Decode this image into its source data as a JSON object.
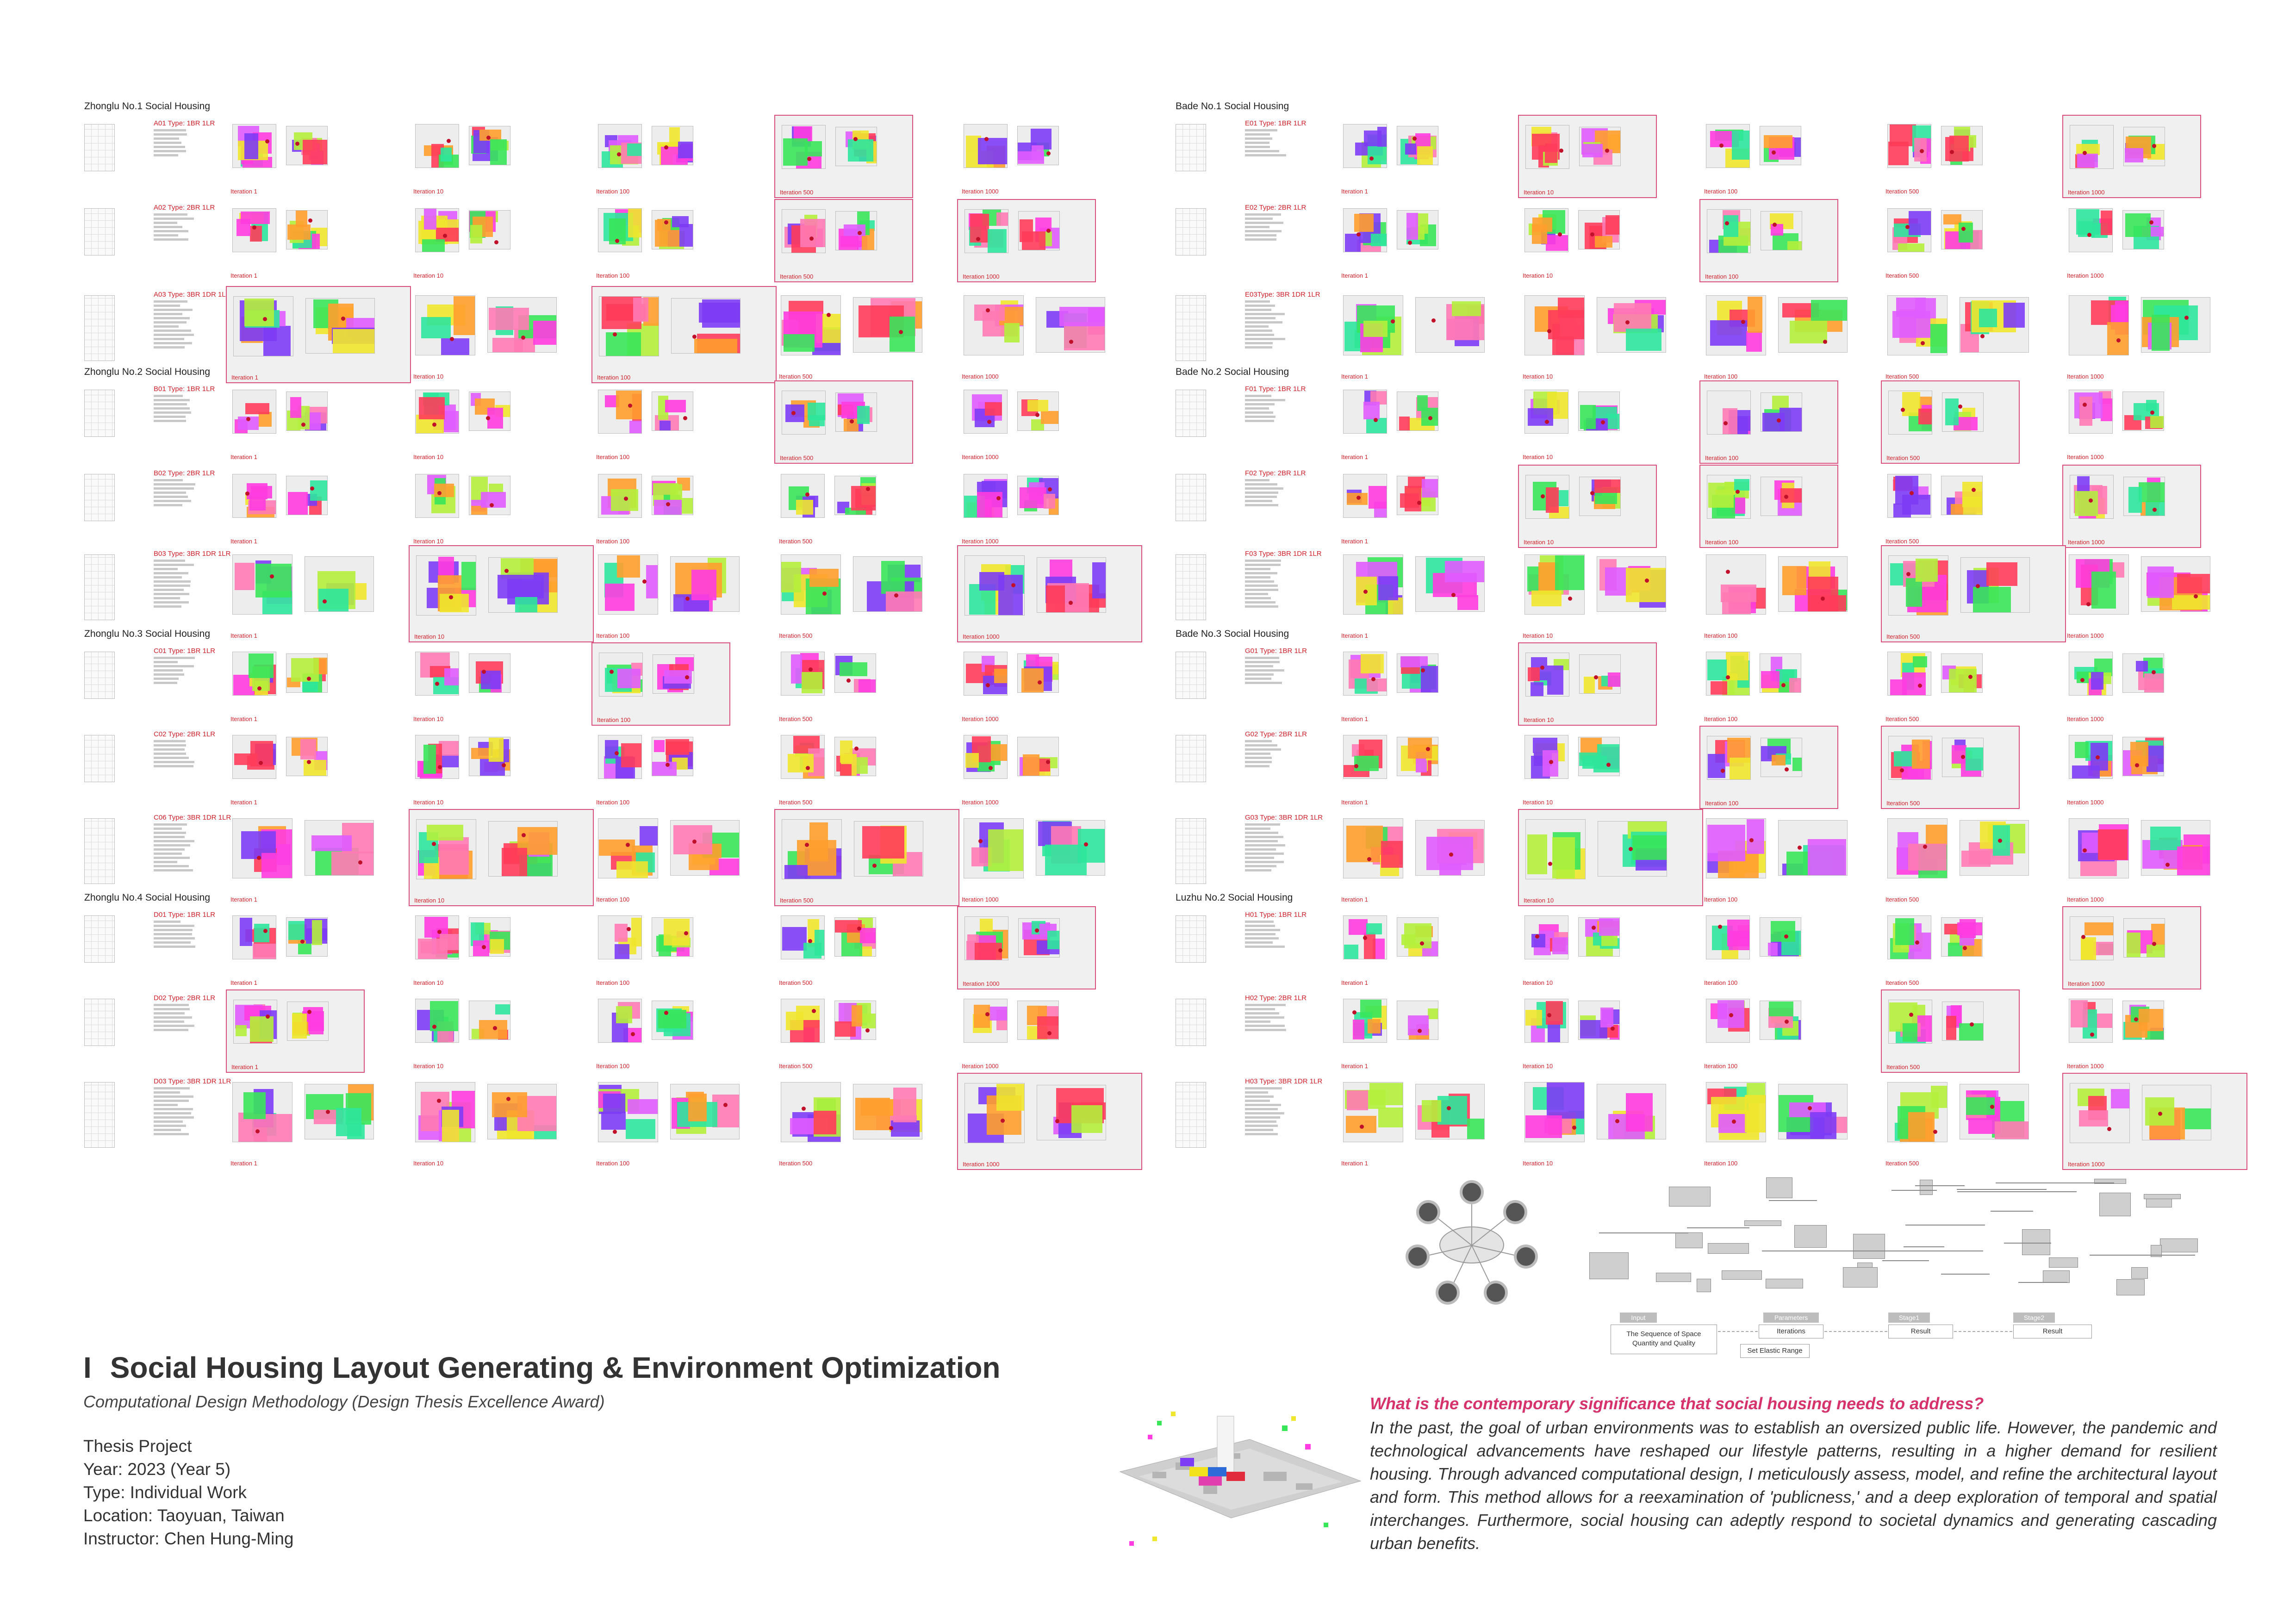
{
  "title": {
    "marker": "I",
    "text": "Social Housing Layout Generating & Environment Optimization",
    "subtitle": "Computational Design Methodology (Design Thesis Excellence Award)"
  },
  "project_info": [
    "Thesis Project",
    "Year: 2023 (Year 5)",
    "Type: Individual Work",
    "Location: Taoyuan, Taiwan",
    "Instructor: Chen Hung-Ming"
  ],
  "question": "What is the contemporary significance that social housing needs to address?",
  "essay": "In the past, the goal of urban environments was to establish an oversized public life. However, the pandemic and technological advancements have reshaped our lifestyle patterns, resulting in a higher demand for resilient housing. Through advanced computational design, I meticulously assess, model, and refine the architectural layout and form. This method allows for a reexamination of 'publicness,' and a deep exploration of temporal and spatial interchanges. Furthermore, social housing can adeptly respond to societal dynamics and generating cascading urban benefits.",
  "colors": {
    "accent_pink": "#d6336c",
    "highlight_border": "#d9507c",
    "label_red": "#d0202a",
    "palette": [
      "#7d3cf5",
      "#ff3ce0",
      "#39e65a",
      "#f0e62e",
      "#ff9f2e",
      "#ff3c5a",
      "#2ee69c",
      "#b4f03c",
      "#ff7ab4",
      "#e05cff"
    ]
  },
  "flow_diagram": {
    "headers": [
      "Input",
      "Parameters",
      "Stage1",
      "Stage2"
    ],
    "input_box": "The Sequence of Space\nQuantity and Quality",
    "parameters_box": "Iterations",
    "elastic_box": "Set Elastic Range",
    "stage1_box": "Result",
    "stage2_box": "Result"
  },
  "projects": [
    {
      "name": "Zhonglu No.1 Social Housing",
      "types": [
        {
          "label": "A01 Type: 1BR 1LR",
          "iterations": [
            "Iteration 1",
            "Iteration 10",
            "Iteration 100",
            "Iteration 500",
            "Iteration 1000"
          ],
          "highlights": [
            3
          ]
        },
        {
          "label": "A02 Type: 2BR 1LR",
          "iterations": [
            "Iteration 1",
            "Iteration 10",
            "Iteration 100",
            "Iteration 500",
            "Iteration 1000"
          ],
          "highlights": [
            3,
            4
          ]
        },
        {
          "label": "A03 Type: 3BR 1DR 1LR",
          "iterations": [
            "Iteration 1",
            "Iteration 10",
            "Iteration 100",
            "Iteration 500",
            "Iteration 1000"
          ],
          "highlights": [
            0,
            2
          ]
        }
      ]
    },
    {
      "name": "Zhonglu No.2 Social Housing",
      "types": [
        {
          "label": "B01 Type: 1BR 1LR",
          "iterations": [
            "Iteration 1",
            "Iteration 10",
            "Iteration 100",
            "Iteration 500",
            "Iteration 1000"
          ],
          "highlights": [
            3
          ]
        },
        {
          "label": "B02 Type: 2BR 1LR",
          "iterations": [
            "Iteration 1",
            "Iteration 10",
            "Iteration 100",
            "Iteration 500",
            "Iteration 1000"
          ],
          "highlights": []
        },
        {
          "label": "B03 Type: 3BR 1DR 1LR",
          "iterations": [
            "Iteration 1",
            "Iteration 10",
            "Iteration 100",
            "Iteration 500",
            "Iteration 1000"
          ],
          "highlights": [
            1,
            4
          ]
        }
      ]
    },
    {
      "name": "Zhonglu No.3 Social Housing",
      "types": [
        {
          "label": "C01 Type: 1BR 1LR",
          "iterations": [
            "Iteration 1",
            "Iteration 10",
            "Iteration 100",
            "Iteration 500",
            "Iteration 1000"
          ],
          "highlights": [
            2
          ]
        },
        {
          "label": "C02 Type: 2BR 1LR",
          "iterations": [
            "Iteration 1",
            "Iteration 10",
            "Iteration 100",
            "Iteration 500",
            "Iteration 1000"
          ],
          "highlights": []
        },
        {
          "label": "C06 Type: 3BR 1DR 1LR",
          "iterations": [
            "Iteration 1",
            "Iteration 10",
            "Iteration 100",
            "Iteration 500",
            "Iteration 1000"
          ],
          "highlights": [
            1,
            3
          ]
        }
      ]
    },
    {
      "name": "Zhonglu No.4 Social Housing",
      "types": [
        {
          "label": "D01 Type: 1BR 1LR",
          "iterations": [
            "Iteration 1",
            "Iteration 10",
            "Iteration 100",
            "Iteration 500",
            "Iteration 1000"
          ],
          "highlights": [
            4
          ]
        },
        {
          "label": "D02 Type: 2BR 1LR",
          "iterations": [
            "Iteration 1",
            "Iteration 10",
            "Iteration 100",
            "Iteration 500",
            "Iteration 1000"
          ],
          "highlights": [
            0
          ]
        },
        {
          "label": "D03 Type: 3BR 1DR 1LR",
          "iterations": [
            "Iteration 1",
            "Iteration 10",
            "Iteration 100",
            "Iteration 500",
            "Iteration 1000"
          ],
          "highlights": [
            4
          ]
        }
      ]
    },
    {
      "name": "Bade No.1 Social Housing",
      "types": [
        {
          "label": "E01 Type: 1BR 1LR",
          "iterations": [
            "Iteration 1",
            "Iteration 10",
            "Iteration 100",
            "Iteration 500",
            "Iteration 1000"
          ],
          "highlights": [
            1,
            4
          ]
        },
        {
          "label": "E02 Type: 2BR 1LR",
          "iterations": [
            "Iteration 1",
            "Iteration 10",
            "Iteration 100",
            "Iteration 500",
            "Iteration 1000"
          ],
          "highlights": [
            2
          ]
        },
        {
          "label": "E03Type: 3BR 1DR 1LR",
          "iterations": [
            "Iteration 1",
            "Iteration 10",
            "Iteration 100",
            "Iteration 500",
            "Iteration 1000"
          ],
          "highlights": []
        }
      ]
    },
    {
      "name": "Bade No.2 Social Housing",
      "types": [
        {
          "label": "F01 Type: 1BR 1LR",
          "iterations": [
            "Iteration 1",
            "Iteration 10",
            "Iteration 100",
            "Iteration 500",
            "Iteration 1000"
          ],
          "highlights": [
            2,
            3
          ]
        },
        {
          "label": "F02 Type: 2BR 1LR",
          "iterations": [
            "Iteration 1",
            "Iteration 10",
            "Iteration 100",
            "Iteration 500",
            "Iteration 1000"
          ],
          "highlights": [
            1,
            2,
            4
          ]
        },
        {
          "label": "F03 Type: 3BR 1DR 1LR",
          "iterations": [
            "Iteration 1",
            "Iteration 10",
            "Iteration 100",
            "Iteration 500",
            "Iteration 1000"
          ],
          "highlights": [
            3
          ]
        }
      ]
    },
    {
      "name": "Bade No.3 Social Housing",
      "types": [
        {
          "label": "G01 Type: 1BR 1LR",
          "iterations": [
            "Iteration 1",
            "Iteration 10",
            "Iteration 100",
            "Iteration 500",
            "Iteration 1000"
          ],
          "highlights": [
            1
          ]
        },
        {
          "label": "G02 Type: 2BR 1LR",
          "iterations": [
            "Iteration 1",
            "Iteration 10",
            "Iteration 100",
            "Iteration 500",
            "Iteration 1000"
          ],
          "highlights": [
            2,
            3
          ]
        },
        {
          "label": "G03 Type: 3BR 1DR 1LR",
          "iterations": [
            "Iteration 1",
            "Iteration 10",
            "Iteration 100",
            "Iteration 500",
            "Iteration 1000"
          ],
          "highlights": [
            1
          ]
        }
      ]
    },
    {
      "name": "Luzhu No.2 Social Housing",
      "types": [
        {
          "label": "H01 Type: 1BR 1LR",
          "iterations": [
            "Iteration 1",
            "Iteration 10",
            "Iteration 100",
            "Iteration 500",
            "Iteration 1000"
          ],
          "highlights": [
            4
          ]
        },
        {
          "label": "H02 Type: 2BR 1LR",
          "iterations": [
            "Iteration 1",
            "Iteration 10",
            "Iteration 100",
            "Iteration 500",
            "Iteration 1000"
          ],
          "highlights": [
            3
          ]
        },
        {
          "label": "H03 Type: 3BR 1DR 1LR",
          "iterations": [
            "Iteration 1",
            "Iteration 10",
            "Iteration 100",
            "Iteration 500",
            "Iteration 1000"
          ],
          "highlights": [
            4
          ]
        }
      ]
    }
  ]
}
